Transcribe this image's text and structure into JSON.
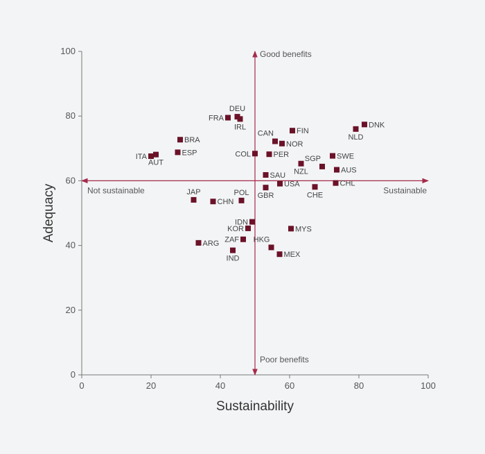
{
  "chart_data": {
    "type": "scatter",
    "xlabel": "Sustainability",
    "ylabel": "Adequacy",
    "xlim": [
      0,
      100
    ],
    "ylim": [
      0,
      100
    ],
    "xticks": [
      "0",
      "20",
      "40",
      "60",
      "80",
      "100"
    ],
    "yticks": [
      "0",
      "20",
      "40",
      "60",
      "80",
      "100"
    ],
    "midpoint": {
      "x": 50,
      "y": 60
    },
    "quadrant_labels": {
      "top": "Good benefits",
      "bottom": "Poor benefits",
      "left": "Not sustainable",
      "right": "Sustainable"
    },
    "colors": {
      "marker": "#6b1228",
      "axis": "#a52a4a",
      "frame": "#777777"
    },
    "points": [
      {
        "label": "DNK",
        "x": 81.6,
        "y": 77.4,
        "pos": "r"
      },
      {
        "label": "NLD",
        "x": 79.1,
        "y": 76.0,
        "pos": "b"
      },
      {
        "label": "FIN",
        "x": 60.8,
        "y": 75.5,
        "pos": "r"
      },
      {
        "label": "CAN",
        "x": 55.8,
        "y": 72.2,
        "pos": "tl"
      },
      {
        "label": "NOR",
        "x": 57.8,
        "y": 71.5,
        "pos": "r"
      },
      {
        "label": "DEU",
        "x": 44.9,
        "y": 79.8,
        "pos": "t"
      },
      {
        "label": "FRA",
        "x": 42.2,
        "y": 79.5,
        "pos": "l"
      },
      {
        "label": "IRL",
        "x": 45.7,
        "y": 79.1,
        "pos": "b"
      },
      {
        "label": "BRA",
        "x": 28.4,
        "y": 72.7,
        "pos": "r"
      },
      {
        "label": "ESP",
        "x": 27.7,
        "y": 68.8,
        "pos": "r"
      },
      {
        "label": "ITA",
        "x": 20.0,
        "y": 67.6,
        "pos": "l"
      },
      {
        "label": "AUT",
        "x": 21.4,
        "y": 68.1,
        "pos": "b"
      },
      {
        "label": "COL",
        "x": 50.0,
        "y": 68.4,
        "pos": "l"
      },
      {
        "label": "PER",
        "x": 54.1,
        "y": 68.2,
        "pos": "r"
      },
      {
        "label": "SWE",
        "x": 72.4,
        "y": 67.7,
        "pos": "r"
      },
      {
        "label": "NZL",
        "x": 63.3,
        "y": 65.3,
        "pos": "b"
      },
      {
        "label": "SGP",
        "x": 69.4,
        "y": 64.4,
        "pos": "tl"
      },
      {
        "label": "AUS",
        "x": 73.6,
        "y": 63.4,
        "pos": "r"
      },
      {
        "label": "SAU",
        "x": 53.1,
        "y": 61.8,
        "pos": "r"
      },
      {
        "label": "USA",
        "x": 57.2,
        "y": 59.1,
        "pos": "r"
      },
      {
        "label": "GBR",
        "x": 53.1,
        "y": 57.9,
        "pos": "b"
      },
      {
        "label": "CHE",
        "x": 67.3,
        "y": 58.1,
        "pos": "b"
      },
      {
        "label": "CHL",
        "x": 73.3,
        "y": 59.3,
        "pos": "r"
      },
      {
        "label": "JAP",
        "x": 32.3,
        "y": 54.1,
        "pos": "t"
      },
      {
        "label": "CHN",
        "x": 37.9,
        "y": 53.6,
        "pos": "r"
      },
      {
        "label": "POL",
        "x": 46.1,
        "y": 53.9,
        "pos": "t"
      },
      {
        "label": "IDN",
        "x": 49.2,
        "y": 47.3,
        "pos": "l"
      },
      {
        "label": "KOR",
        "x": 48.0,
        "y": 45.3,
        "pos": "l"
      },
      {
        "label": "MYS",
        "x": 60.4,
        "y": 45.2,
        "pos": "r"
      },
      {
        "label": "ZAF",
        "x": 46.6,
        "y": 41.9,
        "pos": "l"
      },
      {
        "label": "ARG",
        "x": 33.7,
        "y": 40.8,
        "pos": "r"
      },
      {
        "label": "HKG",
        "x": 54.7,
        "y": 39.4,
        "pos": "tl"
      },
      {
        "label": "IND",
        "x": 43.6,
        "y": 38.5,
        "pos": "b"
      },
      {
        "label": "MEX",
        "x": 57.1,
        "y": 37.3,
        "pos": "r"
      }
    ]
  }
}
